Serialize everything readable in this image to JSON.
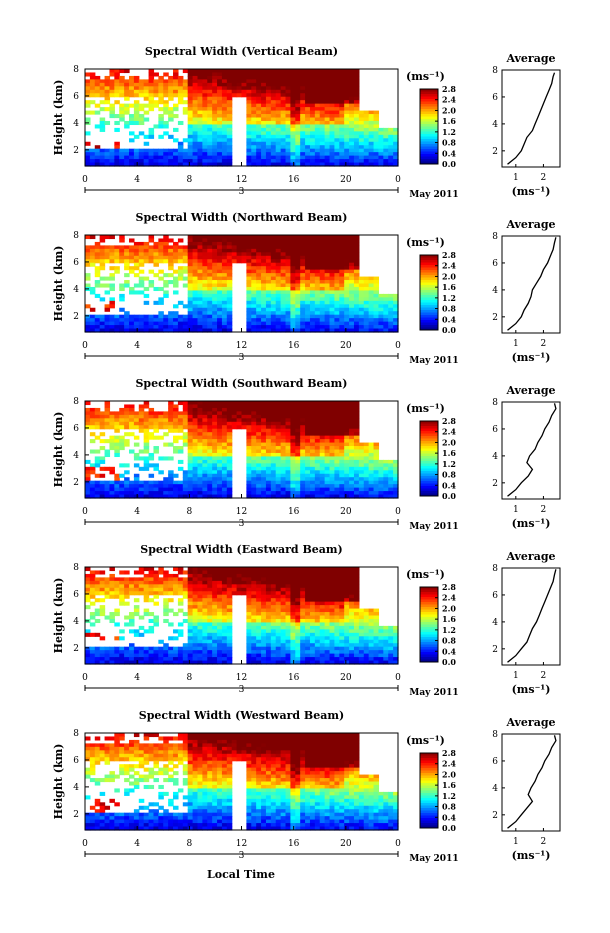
{
  "figure": {
    "xlabel": "Local Time",
    "date_label": "May 2011",
    "unit": "(ms⁻¹)",
    "avg_title": "Average"
  },
  "chart_data": [
    {
      "type": "heatmap",
      "title": "Spectral Width (Vertical Beam)",
      "ylabel": "Height (km)",
      "xticks": [
        "0",
        "4",
        "8",
        "12",
        "16",
        "20",
        "0"
      ],
      "xlim": [
        0,
        24
      ],
      "yticks": [
        "2",
        "4",
        "6",
        "8"
      ],
      "ylim": [
        0.8,
        8
      ],
      "day_markers": [
        "3"
      ],
      "colorbar": [
        "0.0",
        "0.4",
        "0.8",
        "1.2",
        "1.6",
        "2.0",
        "2.4",
        "2.8"
      ],
      "avg": {
        "title": "Average",
        "xticks": [
          "1",
          "2"
        ],
        "xlim": [
          0.5,
          2.6
        ],
        "yticks": [
          "2",
          "4",
          "6",
          "8"
        ],
        "ylim": [
          0.8,
          8
        ],
        "profile": [
          [
            0.7,
            1.0
          ],
          [
            1.0,
            1.5
          ],
          [
            1.2,
            2.0
          ],
          [
            1.3,
            2.5
          ],
          [
            1.4,
            3.0
          ],
          [
            1.6,
            3.5
          ],
          [
            1.7,
            4.0
          ],
          [
            1.8,
            4.5
          ],
          [
            1.9,
            5.0
          ],
          [
            2.0,
            5.5
          ],
          [
            2.1,
            6.0
          ],
          [
            2.2,
            6.5
          ],
          [
            2.3,
            7.0
          ],
          [
            2.35,
            7.5
          ],
          [
            2.4,
            7.8
          ]
        ]
      }
    },
    {
      "type": "heatmap",
      "title": "Spectral Width (Northward Beam)",
      "ylabel": "Height (km)",
      "xticks": [
        "0",
        "4",
        "8",
        "12",
        "16",
        "20",
        "0"
      ],
      "xlim": [
        0,
        24
      ],
      "yticks": [
        "2",
        "4",
        "6",
        "8"
      ],
      "ylim": [
        0.8,
        8
      ],
      "day_markers": [
        "3"
      ],
      "colorbar": [
        "0.0",
        "0.4",
        "0.8",
        "1.2",
        "1.6",
        "2.0",
        "2.4",
        "2.8"
      ],
      "avg": {
        "title": "Average",
        "xticks": [
          "1",
          "2"
        ],
        "xlim": [
          0.5,
          2.6
        ],
        "yticks": [
          "2",
          "4",
          "6",
          "8"
        ],
        "ylim": [
          0.8,
          8
        ],
        "profile": [
          [
            0.7,
            1.0
          ],
          [
            1.0,
            1.5
          ],
          [
            1.2,
            2.0
          ],
          [
            1.3,
            2.5
          ],
          [
            1.45,
            3.0
          ],
          [
            1.55,
            3.5
          ],
          [
            1.6,
            4.0
          ],
          [
            1.75,
            4.5
          ],
          [
            1.9,
            5.0
          ],
          [
            2.0,
            5.5
          ],
          [
            2.15,
            6.0
          ],
          [
            2.25,
            6.5
          ],
          [
            2.35,
            7.0
          ],
          [
            2.4,
            7.5
          ],
          [
            2.45,
            7.9
          ]
        ]
      }
    },
    {
      "type": "heatmap",
      "title": "Spectral Width (Southward Beam)",
      "ylabel": "Height (km)",
      "xticks": [
        "0",
        "4",
        "8",
        "12",
        "16",
        "20",
        "0"
      ],
      "xlim": [
        0,
        24
      ],
      "yticks": [
        "2",
        "4",
        "6",
        "8"
      ],
      "ylim": [
        0.8,
        8
      ],
      "day_markers": [
        "3"
      ],
      "colorbar": [
        "0.0",
        "0.4",
        "0.8",
        "1.2",
        "1.6",
        "2.0",
        "2.4",
        "2.8"
      ],
      "avg": {
        "title": "Average",
        "xticks": [
          "1",
          "2"
        ],
        "xlim": [
          0.5,
          2.6
        ],
        "yticks": [
          "2",
          "4",
          "6",
          "8"
        ],
        "ylim": [
          0.8,
          8
        ],
        "profile": [
          [
            0.7,
            1.0
          ],
          [
            1.0,
            1.5
          ],
          [
            1.2,
            2.0
          ],
          [
            1.45,
            2.5
          ],
          [
            1.6,
            3.0
          ],
          [
            1.4,
            3.5
          ],
          [
            1.5,
            4.0
          ],
          [
            1.7,
            4.5
          ],
          [
            1.8,
            5.0
          ],
          [
            1.95,
            5.5
          ],
          [
            2.05,
            6.0
          ],
          [
            2.2,
            6.5
          ],
          [
            2.3,
            7.0
          ],
          [
            2.45,
            7.5
          ],
          [
            2.4,
            7.9
          ]
        ]
      }
    },
    {
      "type": "heatmap",
      "title": "Spectral Width (Eastward Beam)",
      "ylabel": "Height (km)",
      "xticks": [
        "0",
        "4",
        "8",
        "12",
        "16",
        "20",
        "0"
      ],
      "xlim": [
        0,
        24
      ],
      "yticks": [
        "2",
        "4",
        "6",
        "8"
      ],
      "ylim": [
        0.8,
        8
      ],
      "day_markers": [
        "3"
      ],
      "colorbar": [
        "0.0",
        "0.4",
        "0.8",
        "1.2",
        "1.6",
        "2.0",
        "2.4",
        "2.8"
      ],
      "avg": {
        "title": "Average",
        "xticks": [
          "1",
          "2"
        ],
        "xlim": [
          0.5,
          2.6
        ],
        "yticks": [
          "2",
          "4",
          "6",
          "8"
        ],
        "ylim": [
          0.8,
          8
        ],
        "profile": [
          [
            0.7,
            1.0
          ],
          [
            1.0,
            1.5
          ],
          [
            1.2,
            2.0
          ],
          [
            1.4,
            2.5
          ],
          [
            1.5,
            3.0
          ],
          [
            1.6,
            3.5
          ],
          [
            1.75,
            4.0
          ],
          [
            1.85,
            4.5
          ],
          [
            1.95,
            5.0
          ],
          [
            2.05,
            5.5
          ],
          [
            2.15,
            6.0
          ],
          [
            2.25,
            6.5
          ],
          [
            2.35,
            7.0
          ],
          [
            2.4,
            7.5
          ],
          [
            2.45,
            7.9
          ]
        ]
      }
    },
    {
      "type": "heatmap",
      "title": "Spectral Width (Westward Beam)",
      "ylabel": "Height (km)",
      "xticks": [
        "0",
        "4",
        "8",
        "12",
        "16",
        "20",
        "0"
      ],
      "xlim": [
        0,
        24
      ],
      "yticks": [
        "2",
        "4",
        "6",
        "8"
      ],
      "ylim": [
        0.8,
        8
      ],
      "day_markers": [
        "3"
      ],
      "colorbar": [
        "0.0",
        "0.4",
        "0.8",
        "1.2",
        "1.6",
        "2.0",
        "2.4",
        "2.8"
      ],
      "avg": {
        "title": "Average",
        "xticks": [
          "1",
          "2"
        ],
        "xlim": [
          0.5,
          2.6
        ],
        "yticks": [
          "2",
          "4",
          "6",
          "8"
        ],
        "ylim": [
          0.8,
          8
        ],
        "profile": [
          [
            0.7,
            1.0
          ],
          [
            1.0,
            1.5
          ],
          [
            1.2,
            2.0
          ],
          [
            1.4,
            2.5
          ],
          [
            1.6,
            3.0
          ],
          [
            1.45,
            3.5
          ],
          [
            1.55,
            4.0
          ],
          [
            1.7,
            4.5
          ],
          [
            1.8,
            5.0
          ],
          [
            1.95,
            5.5
          ],
          [
            2.05,
            6.0
          ],
          [
            2.2,
            6.5
          ],
          [
            2.3,
            7.0
          ],
          [
            2.45,
            7.5
          ],
          [
            2.4,
            7.9
          ]
        ]
      }
    }
  ]
}
